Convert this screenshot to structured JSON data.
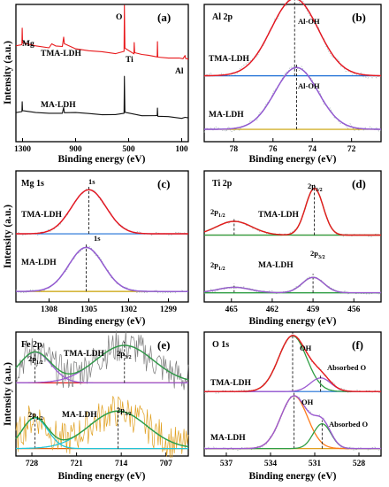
{
  "chart_data": [
    {
      "id": "a",
      "type": "line",
      "panel_label": "(a)",
      "xlabel": "Binding energy (eV)",
      "ylabel": "Intensity (a.u.)",
      "x_ticks": [
        1300,
        900,
        500,
        100
      ],
      "xlim": [
        1350,
        50
      ],
      "series": [
        {
          "name": "TMA-LDH",
          "color": "#e8191c",
          "offset": 0.55,
          "points": [
            [
              1350,
              0.25
            ],
            [
              1305,
              0.28
            ],
            [
              1303,
              0.55
            ],
            [
              1300,
              0.3
            ],
            [
              1200,
              0.25
            ],
            [
              1100,
              0.22
            ],
            [
              1080,
              0.28
            ],
            [
              1050,
              0.24
            ],
            [
              1000,
              0.25
            ],
            [
              990,
              0.4
            ],
            [
              985,
              0.28
            ],
            [
              900,
              0.2
            ],
            [
              800,
              0.16
            ],
            [
              700,
              0.14
            ],
            [
              600,
              0.12
            ],
            [
              535,
              0.15
            ],
            [
              532,
              0.95
            ],
            [
              528,
              0.2
            ],
            [
              460,
              0.12
            ],
            [
              458,
              0.3
            ],
            [
              455,
              0.14
            ],
            [
              400,
              0.1
            ],
            [
              350,
              0.08
            ],
            [
              285,
              0.06
            ],
            [
              283,
              0.32
            ],
            [
              280,
              0.06
            ],
            [
              200,
              0.04
            ],
            [
              120,
              0.03
            ],
            [
              90,
              0.02
            ],
            [
              75,
              0.08
            ],
            [
              70,
              0.02
            ],
            [
              50,
              0.01
            ]
          ]
        },
        {
          "name": "MA-LDH",
          "color": "#111111",
          "offset": 0.0,
          "points": [
            [
              1350,
              0.12
            ],
            [
              1305,
              0.14
            ],
            [
              1303,
              0.3
            ],
            [
              1300,
              0.15
            ],
            [
              1200,
              0.12
            ],
            [
              1100,
              0.11
            ],
            [
              1000,
              0.1
            ],
            [
              990,
              0.22
            ],
            [
              985,
              0.12
            ],
            [
              900,
              0.12
            ],
            [
              800,
              0.1
            ],
            [
              700,
              0.09
            ],
            [
              600,
              0.09
            ],
            [
              535,
              0.1
            ],
            [
              532,
              0.75
            ],
            [
              528,
              0.12
            ],
            [
              400,
              0.07
            ],
            [
              300,
              0.06
            ],
            [
              285,
              0.07
            ],
            [
              283,
              0.2
            ],
            [
              280,
              0.05
            ],
            [
              200,
              0.04
            ],
            [
              100,
              0.03
            ],
            [
              75,
              0.05
            ],
            [
              50,
              0.02
            ]
          ]
        }
      ],
      "series_labels": [
        "TMA-LDH",
        "MA-LDH"
      ],
      "annotations": [
        "Mg",
        "O",
        "Ti",
        "Al"
      ]
    },
    {
      "id": "b",
      "type": "line",
      "panel_label": "(b)",
      "title": "Al 2p",
      "xlabel": "Binding energy (eV)",
      "x_ticks": [
        78,
        76,
        74,
        72
      ],
      "xlim": [
        79.5,
        70.5
      ],
      "peak_label": "Al-OH",
      "upper": {
        "name": "TMA-LDH",
        "peak_center": 74.9,
        "width": 1.2,
        "height": 0.75,
        "fit_color": "#e8191c",
        "baseline_color": "#1d6fd6",
        "component_color": "#9b59d0"
      },
      "lower": {
        "name": "MA-LDH",
        "peak_center": 74.8,
        "width": 1.1,
        "height": 0.6,
        "fit_color": "#9b59d0",
        "baseline_color": "#c8a000",
        "component_color": "#1d6fd6"
      }
    },
    {
      "id": "c",
      "type": "line",
      "panel_label": "(c)",
      "title": "Mg 1s",
      "xlabel": "Binding energy (eV)",
      "x_ticks": [
        1308,
        1305,
        1302,
        1299
      ],
      "xlim": [
        1310.5,
        1297.5
      ],
      "peak_label": "1s",
      "upper": {
        "name": "TMA-LDH",
        "peak_center": 1305.0,
        "width": 1.3,
        "height": 0.7,
        "fit_color": "#e8191c",
        "baseline_color": "#1d6fd6",
        "component_color": "#9b59d0"
      },
      "lower": {
        "name": "MA-LDH",
        "peak_center": 1305.2,
        "width": 1.3,
        "height": 0.7,
        "fit_color": "#9b59d0",
        "baseline_color": "#c8a000",
        "component_color": "#1d6fd6"
      }
    },
    {
      "id": "d",
      "type": "line",
      "panel_label": "(d)",
      "title": "Ti 2p",
      "xlabel": "Binding energy (eV)",
      "x_ticks": [
        465,
        462,
        459,
        456
      ],
      "xlim": [
        467,
        454
      ],
      "upper": {
        "name": "TMA-LDH",
        "peaks": [
          {
            "label": "2p1/2",
            "center": 464.8,
            "width": 1.3,
            "height": 0.25
          },
          {
            "label": "2p3/2",
            "center": 458.9,
            "width": 0.65,
            "height": 0.85
          }
        ],
        "fit_color": "#e8191c",
        "baseline_color": "#8b7a00",
        "component_color": "#2f9e44"
      },
      "lower": {
        "name": "MA-LDH",
        "peaks": [
          {
            "label": "2p1/2",
            "center": 464.8,
            "width": 1.2,
            "height": 0.1
          },
          {
            "label": "2p3/2",
            "center": 459.0,
            "width": 0.8,
            "height": 0.28
          }
        ],
        "fit_color": "#9b59d0",
        "baseline_color": "#2f9e44",
        "component_color": "#2f9e44"
      }
    },
    {
      "id": "e",
      "type": "line",
      "panel_label": "(e)",
      "title": "Fe 2p",
      "xlabel": "Binding energy (eV)",
      "x_ticks": [
        728,
        721,
        714,
        707
      ],
      "xlim": [
        730.5,
        703.5
      ],
      "upper": {
        "name": "TMA-LDH",
        "peaks": [
          {
            "label": "2p1/2",
            "center": 727.5,
            "width": 2.5,
            "height": 0.45
          },
          {
            "label": "2p3/2",
            "center": 713.5,
            "width": 4.5,
            "height": 0.55
          }
        ],
        "raw_color": "#7a7a7a",
        "fit_color": "#2f9e44",
        "component_color": "#9b59d0",
        "baseline_color": "#e8191c"
      },
      "lower": {
        "name": "MA-LDH",
        "peaks": [
          {
            "label": "2p1/2",
            "center": 727.5,
            "width": 2.0,
            "height": 0.45
          },
          {
            "label": "2p3/2",
            "center": 714.5,
            "width": 4.5,
            "height": 0.55
          }
        ],
        "raw_color": "#e0a020",
        "fit_color": "#2f9e44",
        "component_color": "#22c3d6",
        "baseline_color": "#e06010"
      }
    },
    {
      "id": "f",
      "type": "line",
      "panel_label": "(f)",
      "title": "O 1s",
      "xlabel": "Binding energy (eV)",
      "x_ticks": [
        537,
        534,
        531,
        528
      ],
      "xlim": [
        538.5,
        526.5
      ],
      "upper": {
        "name": "TMA-LDH",
        "peaks": [
          {
            "label": "OH",
            "center": 532.5,
            "width": 0.95,
            "height": 0.9
          },
          {
            "label": "Absorbed O",
            "center": 530.6,
            "width": 0.7,
            "height": 0.22
          }
        ],
        "fit_color": "#e8191c",
        "main_component_color": "#2f9e44",
        "minor_component_color": "#9b59d0",
        "baseline_color": "#1d6fd6"
      },
      "lower": {
        "name": "MA-LDH",
        "peaks": [
          {
            "label": "OH",
            "center": 532.4,
            "width": 0.9,
            "height": 0.85
          },
          {
            "label": "Absorbed O",
            "center": 530.5,
            "width": 0.6,
            "height": 0.4
          }
        ],
        "fit_color": "#9b59d0",
        "main_component_color": "#ff7a1a",
        "minor_component_color": "#2f9e44",
        "baseline_color": "#e0a020"
      }
    }
  ],
  "figure": {
    "ylabel": "Intensity (a.u.)",
    "xlabel": "Binding energy (eV)"
  }
}
